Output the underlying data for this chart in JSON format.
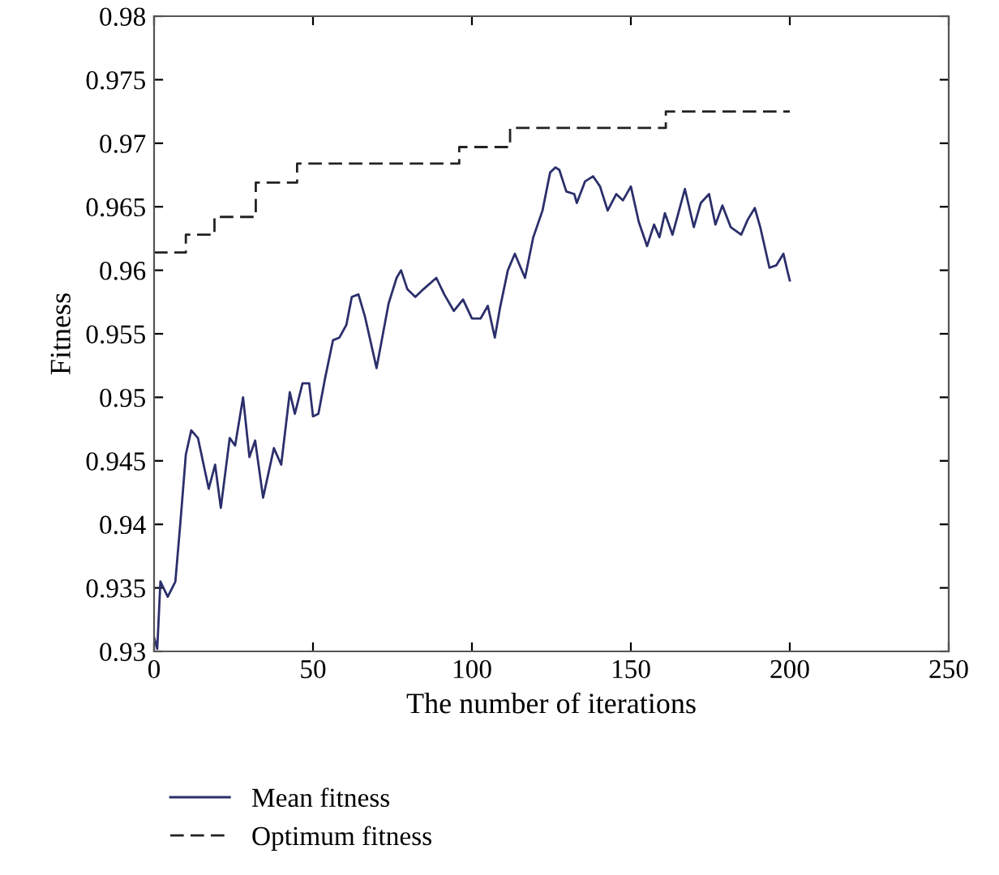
{
  "chart_data": {
    "type": "line",
    "xlabel": "The number of iterations",
    "ylabel": "Fitness",
    "xlim": [
      0,
      250
    ],
    "xticks": [
      0,
      50,
      100,
      150,
      200,
      250
    ],
    "ylim": [
      0.93,
      0.98
    ],
    "yticks": [
      0.93,
      0.935,
      0.94,
      0.945,
      0.95,
      0.955,
      0.96,
      0.965,
      0.97,
      0.975,
      0.98
    ],
    "grid": false,
    "legend": "bottom left",
    "marker": "none",
    "series": [
      {
        "name": "Mean fitness",
        "color": "#2b2f6b",
        "line_style": "solid",
        "x": [
          0,
          1,
          2,
          4.3,
          6.7,
          8.3,
          10,
          11.7,
          13.8,
          17.2,
          19.2,
          21,
          23.8,
          25.5,
          28,
          30,
          31.8,
          34.3,
          37.7,
          40,
          42.7,
          44.3,
          46.7,
          48.8,
          50,
          51.7,
          53.8,
          56.3,
          58.3,
          60.5,
          62.2,
          64.3,
          66.3,
          70,
          73.8,
          76.3,
          77.7,
          79.7,
          82.2,
          84.7,
          88.8,
          91.3,
          94.3,
          97.2,
          100,
          102.7,
          105,
          107.2,
          108.8,
          111.3,
          113.5,
          116.7,
          119.3,
          122.2,
          124.6,
          126.3,
          127.5,
          129.7,
          132.2,
          133,
          135.6,
          138.1,
          140.3,
          142.7,
          145.4,
          147.5,
          150,
          152.5,
          155.1,
          157.3,
          159,
          160.7,
          163.1,
          167,
          169.8,
          172,
          174.6,
          176.6,
          178.8,
          181.4,
          184.7,
          186.8,
          189,
          190.7,
          193.6,
          195.8,
          198,
          199.2,
          200
        ],
        "values": [
          0.9311,
          0.9302,
          0.9355,
          0.9343,
          0.9355,
          0.9402,
          0.9455,
          0.9474,
          0.9468,
          0.9428,
          0.9447,
          0.9413,
          0.9468,
          0.9462,
          0.95,
          0.9453,
          0.9466,
          0.9421,
          0.946,
          0.9447,
          0.9504,
          0.9487,
          0.9511,
          0.9511,
          0.9485,
          0.9487,
          0.9515,
          0.9545,
          0.9547,
          0.9557,
          0.9579,
          0.9581,
          0.9564,
          0.9523,
          0.9574,
          0.9594,
          0.96,
          0.9585,
          0.9579,
          0.9585,
          0.9594,
          0.9581,
          0.9568,
          0.9577,
          0.9562,
          0.9562,
          0.9572,
          0.9547,
          0.957,
          0.96,
          0.9613,
          0.9594,
          0.9626,
          0.9647,
          0.9677,
          0.9681,
          0.9679,
          0.9662,
          0.966,
          0.9653,
          0.967,
          0.9674,
          0.9666,
          0.9647,
          0.966,
          0.9655,
          0.9666,
          0.9638,
          0.9619,
          0.9636,
          0.9626,
          0.9645,
          0.9628,
          0.9664,
          0.9634,
          0.9653,
          0.966,
          0.9636,
          0.9651,
          0.9634,
          0.9628,
          0.964,
          0.9649,
          0.9634,
          0.9602,
          0.9604,
          0.9613,
          0.96,
          0.9592
        ]
      },
      {
        "name": "Optimum fitness",
        "type": "step",
        "color": "#222222",
        "line_style": "dashed",
        "x": [
          0,
          10,
          19,
          32,
          45,
          96,
          112,
          161,
          200
        ],
        "values": [
          0.9614,
          0.9628,
          0.9642,
          0.9669,
          0.9684,
          0.9697,
          0.9712,
          0.9725,
          0.9725
        ]
      }
    ]
  }
}
